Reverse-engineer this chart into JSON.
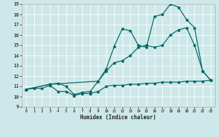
{
  "bg_color": "#cde8e8",
  "grid_color": "#ffffff",
  "line_color": "#006666",
  "x_min": 0,
  "x_max": 23,
  "y_min": 9,
  "y_max": 19,
  "xlabel": "Humidex (Indice chaleur)",
  "x_ticks": [
    0,
    1,
    2,
    3,
    4,
    5,
    6,
    7,
    8,
    9,
    10,
    11,
    12,
    13,
    14,
    15,
    16,
    17,
    18,
    19,
    20,
    21,
    22,
    23
  ],
  "y_ticks": [
    9,
    10,
    11,
    12,
    13,
    14,
    15,
    16,
    17,
    18,
    19
  ],
  "line1_x": [
    0,
    1,
    2,
    3,
    4,
    5,
    6,
    7,
    8,
    9,
    10,
    11,
    12,
    13,
    14,
    15,
    16,
    17,
    18,
    19,
    20,
    21,
    22,
    23
  ],
  "line1_y": [
    10.7,
    10.8,
    10.8,
    11.1,
    10.5,
    10.5,
    10.1,
    10.3,
    10.3,
    10.5,
    11.0,
    11.1,
    11.1,
    11.2,
    11.2,
    11.3,
    11.3,
    11.4,
    11.4,
    11.4,
    11.5,
    11.5,
    11.5,
    11.6
  ],
  "line2_x": [
    0,
    3,
    9,
    10,
    11,
    12,
    13,
    14,
    15,
    16,
    17,
    18,
    19,
    20,
    21,
    22,
    23
  ],
  "line2_y": [
    10.7,
    11.2,
    11.5,
    12.7,
    14.9,
    16.6,
    16.4,
    15.0,
    14.8,
    17.8,
    18.0,
    19.0,
    18.7,
    17.5,
    16.7,
    12.5,
    11.6
  ],
  "line3_x": [
    0,
    3,
    4,
    5,
    6,
    7,
    8,
    9,
    10,
    11,
    12,
    13,
    14,
    15,
    16,
    17,
    18,
    19,
    20,
    21,
    22,
    23
  ],
  "line3_y": [
    10.7,
    11.2,
    11.3,
    11.0,
    10.2,
    10.4,
    10.5,
    11.5,
    12.5,
    13.3,
    13.5,
    14.0,
    14.8,
    15.0,
    14.8,
    15.0,
    16.0,
    16.5,
    16.7,
    15.0,
    12.5,
    11.6
  ]
}
